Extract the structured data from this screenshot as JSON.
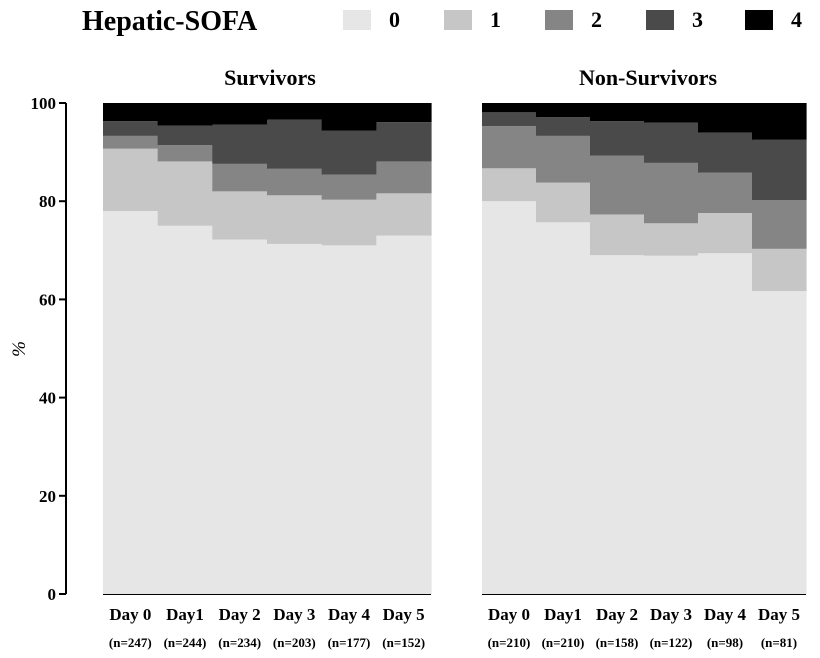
{
  "legend": {
    "title": "Hepatic-SOFA",
    "items": [
      {
        "label": "0",
        "color": "#e6e6e6"
      },
      {
        "label": "1",
        "color": "#c6c6c6"
      },
      {
        "label": "2",
        "color": "#858585"
      },
      {
        "label": "3",
        "color": "#4a4a4a"
      },
      {
        "label": "4",
        "color": "#000000"
      }
    ]
  },
  "chart_data": {
    "type": "bar",
    "stacked": true,
    "ylabel": "%",
    "ylim": [
      0,
      100
    ],
    "yticks": [
      0,
      20,
      40,
      60,
      80,
      100
    ],
    "grid": false,
    "legend_position": "top",
    "panels": [
      {
        "title": "Survivors",
        "categories": [
          "Day 0",
          "Day1",
          "Day 2",
          "Day 3",
          "Day 4",
          "Day 5"
        ],
        "n_labels": [
          "(n=247)",
          "(n=244)",
          "(n=234)",
          "(n=203)",
          "(n=177)",
          "(n=152)"
        ],
        "series": [
          {
            "name": "0",
            "values": [
              78,
              75,
              72.2,
              71.3,
              71,
              73
            ]
          },
          {
            "name": "1",
            "values": [
              12.7,
              13.1,
              9.8,
              9.9,
              9.3,
              8.6
            ]
          },
          {
            "name": "2",
            "values": [
              2.6,
              3.3,
              5.6,
              5.4,
              5.1,
              6.5
            ]
          },
          {
            "name": "3",
            "values": [
              3,
              4,
              8,
              10,
              9,
              8
            ]
          },
          {
            "name": "4",
            "values": [
              3.7,
              4.6,
              4.4,
              3.4,
              5.6,
              3.9
            ]
          }
        ]
      },
      {
        "title": "Non-Survivors",
        "categories": [
          "Day 0",
          "Day1",
          "Day 2",
          "Day 3",
          "Day 4",
          "Day 5"
        ],
        "n_labels": [
          "(n=210)",
          "(n=210)",
          "(n=158)",
          "(n=122)",
          "(n=98)",
          "(n=81)"
        ],
        "series": [
          {
            "name": "0",
            "values": [
              80,
              75.7,
              69,
              68.9,
              69.4,
              61.7
            ]
          },
          {
            "name": "1",
            "values": [
              6.7,
              8.1,
              8.3,
              6.6,
              8.2,
              8.6
            ]
          },
          {
            "name": "2",
            "values": [
              8.6,
              9.5,
              12,
              12.3,
              8.2,
              9.9
            ]
          },
          {
            "name": "3",
            "values": [
              2.8,
              3.8,
              7,
              8.2,
              8.2,
              12.3
            ]
          },
          {
            "name": "4",
            "values": [
              1.9,
              2.9,
              3.7,
              4,
              6,
              7.5
            ]
          }
        ]
      }
    ]
  }
}
